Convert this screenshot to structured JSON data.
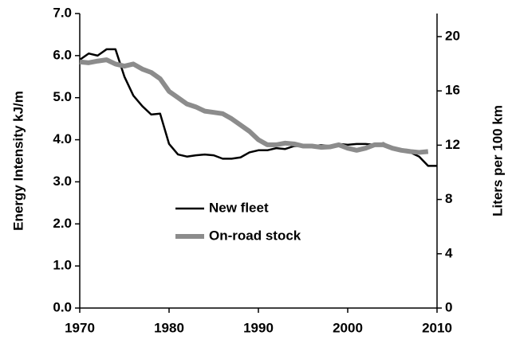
{
  "chart_data": {
    "type": "line",
    "y_label": "Energy Intensity  kJ/m",
    "y2_label": "Liters per 100 km",
    "x": [
      1970,
      1971,
      1972,
      1973,
      1974,
      1975,
      1976,
      1977,
      1978,
      1979,
      1980,
      1981,
      1982,
      1983,
      1984,
      1985,
      1986,
      1987,
      1988,
      1989,
      1990,
      1991,
      1992,
      1993,
      1994,
      1995,
      1996,
      1997,
      1998,
      1999,
      2000,
      2001,
      2002,
      2003,
      2004,
      2005,
      2006,
      2007,
      2008,
      2009,
      2010
    ],
    "series": [
      {
        "name": "New fleet",
        "color": "#000000",
        "values": [
          5.9,
          6.05,
          6.0,
          6.15,
          6.15,
          5.5,
          5.05,
          4.8,
          4.6,
          4.62,
          3.9,
          3.65,
          3.6,
          3.63,
          3.65,
          3.63,
          3.55,
          3.55,
          3.58,
          3.7,
          3.75,
          3.75,
          3.8,
          3.78,
          3.85,
          3.85,
          3.85,
          3.87,
          3.85,
          3.9,
          3.88,
          3.9,
          3.9,
          3.88,
          3.92,
          3.8,
          3.75,
          3.7,
          3.6,
          3.38,
          3.38
        ]
      },
      {
        "name": "On-road stock",
        "color": "#8c8c8c",
        "values": [
          5.85,
          5.83,
          5.87,
          5.9,
          5.8,
          5.75,
          5.8,
          5.68,
          5.6,
          5.45,
          5.15,
          5.0,
          4.85,
          4.78,
          4.68,
          4.65,
          4.62,
          4.5,
          4.35,
          4.2,
          4.0,
          3.88,
          3.88,
          3.92,
          3.9,
          3.85,
          3.85,
          3.82,
          3.83,
          3.88,
          3.8,
          3.75,
          3.8,
          3.88,
          3.88,
          3.8,
          3.75,
          3.72,
          3.7,
          3.72,
          null
        ]
      }
    ],
    "xlim": [
      1970,
      2010
    ],
    "xticks": [
      1970,
      1980,
      1990,
      2000,
      2010
    ],
    "ylim": [
      0,
      7
    ],
    "yticks": [
      {
        "value": 0,
        "label": "0.0"
      },
      {
        "value": 1,
        "label": "1.0"
      },
      {
        "value": 2,
        "label": "2.0"
      },
      {
        "value": 3,
        "label": "3.0"
      },
      {
        "value": 4,
        "label": "4.0"
      },
      {
        "value": 5,
        "label": "5.0"
      },
      {
        "value": 6,
        "label": "6.0"
      },
      {
        "value": 7,
        "label": "7.0"
      }
    ],
    "y2lim": [
      0,
      21.7
    ],
    "y2ticks": [
      0,
      4,
      8,
      12,
      16,
      20
    ]
  }
}
